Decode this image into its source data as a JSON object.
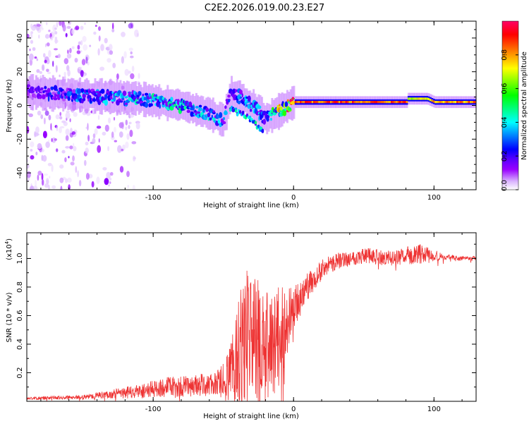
{
  "title": "C2E2.2026.019.00.23.E27",
  "chart_data": [
    {
      "type": "heatmap",
      "name": "spectrogram",
      "xlabel": "Height of straight line (km)",
      "ylabel": "Frequency (Hz)",
      "xlim": [
        -190,
        130
      ],
      "ylim": [
        -50,
        50
      ],
      "xticks": [
        -100,
        0,
        100
      ],
      "xtick_labels": [
        "-100",
        "0",
        "100"
      ],
      "yticks": [
        -40,
        -20,
        0,
        20,
        40
      ],
      "ytick_labels": [
        "-40",
        "-20",
        "0",
        "20",
        "40"
      ],
      "colorbar": {
        "label": "Normalized spectral amplitude",
        "range": [
          0.0,
          1.0
        ],
        "ticks": [
          0.0,
          0.2,
          0.4,
          0.6,
          0.8
        ],
        "tick_labels": [
          "0.0",
          "0.2",
          "0.4",
          "0.6",
          "0.8"
        ],
        "colors": [
          "#ffffff",
          "#d9b3ff",
          "#9900ff",
          "#5a00ff",
          "#0000ff",
          "#0080ff",
          "#00ffff",
          "#00ff80",
          "#00ff00",
          "#80ff00",
          "#ffff00",
          "#ff8000",
          "#ff0000",
          "#ff0066"
        ]
      },
      "ridge": {
        "x": [
          -190,
          -150,
          -110,
          -80,
          -60,
          -50,
          -45,
          -40,
          -30,
          -20,
          0,
          80,
          81,
          95,
          100,
          130
        ],
        "y": [
          8,
          6,
          4,
          0,
          -5,
          -9,
          7,
          6,
          0,
          -8,
          2,
          2,
          4,
          4,
          2,
          2
        ],
        "amplitude": [
          0.2,
          0.35,
          0.4,
          0.45,
          0.4,
          0.35,
          0.3,
          0.35,
          0.4,
          0.35,
          0.95,
          0.95,
          0.8,
          0.8,
          0.9,
          0.9
        ]
      },
      "secondary_branch": {
        "x": [
          -45,
          -35,
          -28,
          -22
        ],
        "y": [
          -2,
          -6,
          -10,
          -16
        ]
      },
      "noise_region_x": [
        -190,
        -140
      ],
      "noise_freq_range": [
        -50,
        50
      ]
    },
    {
      "type": "line",
      "name": "snr",
      "xlabel": "Height of straight line (km)",
      "ylabel": "SNR (10 * v/v)",
      "exponent_label": "(x10",
      "exponent_power": "4",
      "exponent_close": ")",
      "xlim": [
        -190,
        130
      ],
      "ylim": [
        0,
        1.18
      ],
      "xticks": [
        -100,
        0,
        100
      ],
      "xtick_labels": [
        "-100",
        "0",
        "100"
      ],
      "yticks": [
        0.2,
        0.4,
        0.6,
        0.8,
        1.0
      ],
      "ytick_labels": [
        "0.2",
        "0.4",
        "0.6",
        "0.8",
        "1.0"
      ],
      "color": "#ee3333",
      "envelope": {
        "x": [
          -190,
          -150,
          -130,
          -110,
          -90,
          -70,
          -55,
          -45,
          -40,
          -35,
          -30,
          -25,
          -20,
          -15,
          -10,
          -5,
          0,
          10,
          20,
          30,
          40,
          50,
          60,
          70,
          80,
          90,
          100,
          110,
          120,
          130
        ],
        "y": [
          0.02,
          0.03,
          0.05,
          0.07,
          0.1,
          0.11,
          0.12,
          0.18,
          0.35,
          0.5,
          0.45,
          0.4,
          0.35,
          0.42,
          0.45,
          0.55,
          0.65,
          0.8,
          0.92,
          0.98,
          1.0,
          1.02,
          1.01,
          1.0,
          1.02,
          1.03,
          1.02,
          1.01,
          1.0,
          1.0
        ]
      },
      "noise": {
        "x": [
          -190,
          -150,
          -130,
          -110,
          -90,
          -70,
          -55,
          -45,
          -40,
          -35,
          -30,
          -25,
          -20,
          -15,
          -10,
          -5,
          0,
          10,
          20,
          30,
          40,
          50,
          60,
          70,
          80,
          90,
          100,
          110,
          120,
          130
        ],
        "y": [
          0.01,
          0.015,
          0.03,
          0.05,
          0.07,
          0.08,
          0.08,
          0.2,
          0.4,
          0.5,
          0.45,
          0.45,
          0.4,
          0.4,
          0.35,
          0.25,
          0.15,
          0.1,
          0.07,
          0.06,
          0.05,
          0.06,
          0.06,
          0.05,
          0.06,
          0.07,
          0.04,
          0.02,
          0.015,
          0.015
        ]
      }
    }
  ]
}
